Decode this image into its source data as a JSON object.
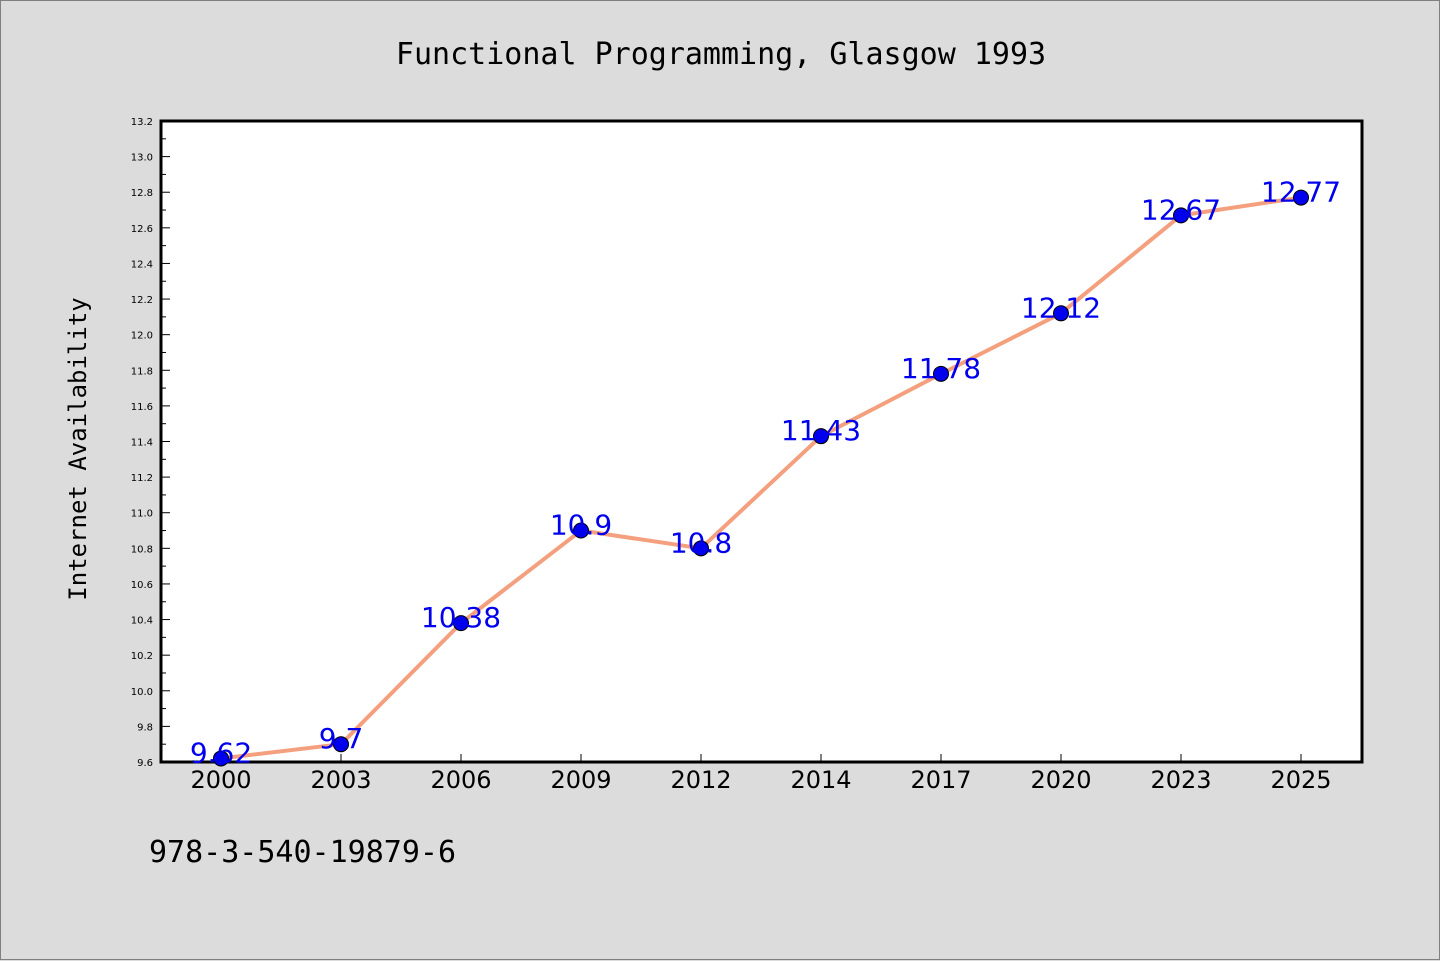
{
  "chart_data": {
    "type": "line",
    "title": "Functional Programming, Glasgow 1993",
    "xlabel": "",
    "ylabel": "Internet Availability",
    "categories": [
      "2000",
      "2003",
      "2006",
      "2009",
      "2012",
      "2014",
      "2017",
      "2020",
      "2023",
      "2025"
    ],
    "series": [
      {
        "values": [
          9.62,
          9.7,
          10.38,
          10.9,
          10.8,
          11.43,
          11.78,
          12.12,
          12.67,
          12.77
        ],
        "labels": [
          "9.62",
          "9.7",
          "10.38",
          "10.9",
          "10.8",
          "11.43",
          "11.78",
          "12.12",
          "12.67",
          "12.77"
        ],
        "line_color": "#f4a07e",
        "marker_color": "#0000ee",
        "label_color": "#0000ee"
      }
    ],
    "ylim": [
      9.6,
      13.2
    ],
    "yticks": [
      "9.6",
      "9.8",
      "10.0",
      "10.2",
      "10.4",
      "10.6",
      "10.8",
      "11.0",
      "11.2",
      "11.4",
      "11.6",
      "11.8",
      "12.0",
      "12.2",
      "12.4",
      "12.6",
      "12.8",
      "13.0",
      "13.2"
    ],
    "grid": false,
    "legend": "none"
  },
  "footer": {
    "isbn": "978-3-540-19879-6"
  }
}
